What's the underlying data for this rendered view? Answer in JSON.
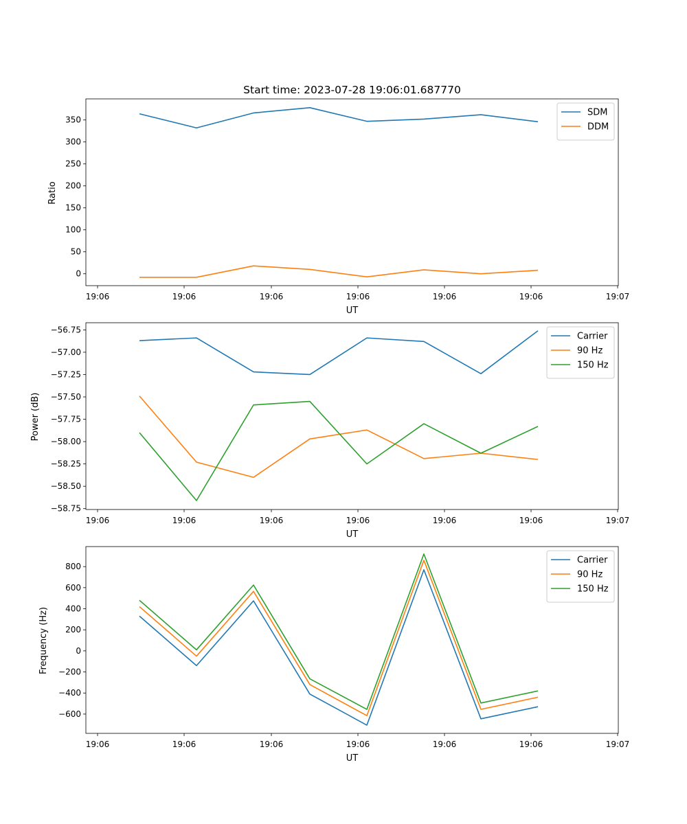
{
  "colors": {
    "c0": "#1f77b4",
    "c1": "#ff7f0e",
    "c2": "#2ca02c"
  },
  "chart_data": [
    {
      "type": "line",
      "title": "Start time: 2023-07-28 19:06:01.687770",
      "xlabel": "UT",
      "ylabel": "Ratio",
      "x_tick_labels": [
        "19:06",
        "19:06",
        "19:06",
        "19:06",
        "19:06",
        "19:06",
        "19:06"
      ],
      "x_tick_last": "19:07",
      "ylim": [
        -27,
        398
      ],
      "yticks": [
        0,
        50,
        100,
        150,
        200,
        250,
        300,
        350
      ],
      "legend_position": "top-right",
      "series": [
        {
          "name": "SDM",
          "color": "#1f77b4",
          "values": [
            364,
            332,
            366,
            378,
            347,
            352,
            362,
            346
          ]
        },
        {
          "name": "DDM",
          "color": "#ff7f0e",
          "values": [
            -8,
            -8,
            18,
            10,
            -7,
            9,
            0,
            8
          ]
        }
      ]
    },
    {
      "type": "line",
      "title": "",
      "xlabel": "UT",
      "ylabel": "Power (dB)",
      "x_tick_labels": [
        "19:06",
        "19:06",
        "19:06",
        "19:06",
        "19:06",
        "19:06",
        "19:06"
      ],
      "x_tick_last": "19:07",
      "ylim": [
        -58.76,
        -56.67
      ],
      "yticks": [
        -58.75,
        -58.5,
        -58.25,
        -58.0,
        -57.75,
        -57.5,
        -57.25,
        -57.0,
        -56.75
      ],
      "legend_position": "top-right",
      "series": [
        {
          "name": "Carrier",
          "color": "#1f77b4",
          "values": [
            -56.87,
            -56.84,
            -57.22,
            -57.25,
            -56.84,
            -56.88,
            -57.24,
            -56.76
          ]
        },
        {
          "name": "90 Hz",
          "color": "#ff7f0e",
          "values": [
            -57.49,
            -58.23,
            -58.4,
            -57.97,
            -57.87,
            -58.19,
            -58.13,
            -58.2
          ]
        },
        {
          "name": "150 Hz",
          "color": "#2ca02c",
          "values": [
            -57.9,
            -58.66,
            -57.59,
            -57.55,
            -58.25,
            -57.8,
            -58.13,
            -57.83
          ]
        }
      ]
    },
    {
      "type": "line",
      "title": "",
      "xlabel": "UT",
      "ylabel": "Frequency (Hz)",
      "x_tick_labels": [
        "19:06",
        "19:06",
        "19:06",
        "19:06",
        "19:06",
        "19:06",
        "19:06"
      ],
      "x_tick_last": "19:07",
      "ylim": [
        -783,
        990
      ],
      "yticks": [
        -600,
        -400,
        -200,
        0,
        200,
        400,
        600,
        800
      ],
      "legend_position": "top-right",
      "series": [
        {
          "name": "Carrier",
          "color": "#1f77b4",
          "values": [
            330,
            -140,
            475,
            -410,
            -705,
            770,
            -645,
            -530
          ]
        },
        {
          "name": "90 Hz",
          "color": "#ff7f0e",
          "values": [
            420,
            -50,
            565,
            -320,
            -615,
            860,
            -555,
            -440
          ]
        },
        {
          "name": "150 Hz",
          "color": "#2ca02c",
          "values": [
            480,
            10,
            625,
            -265,
            -555,
            920,
            -495,
            -380
          ]
        }
      ]
    }
  ]
}
